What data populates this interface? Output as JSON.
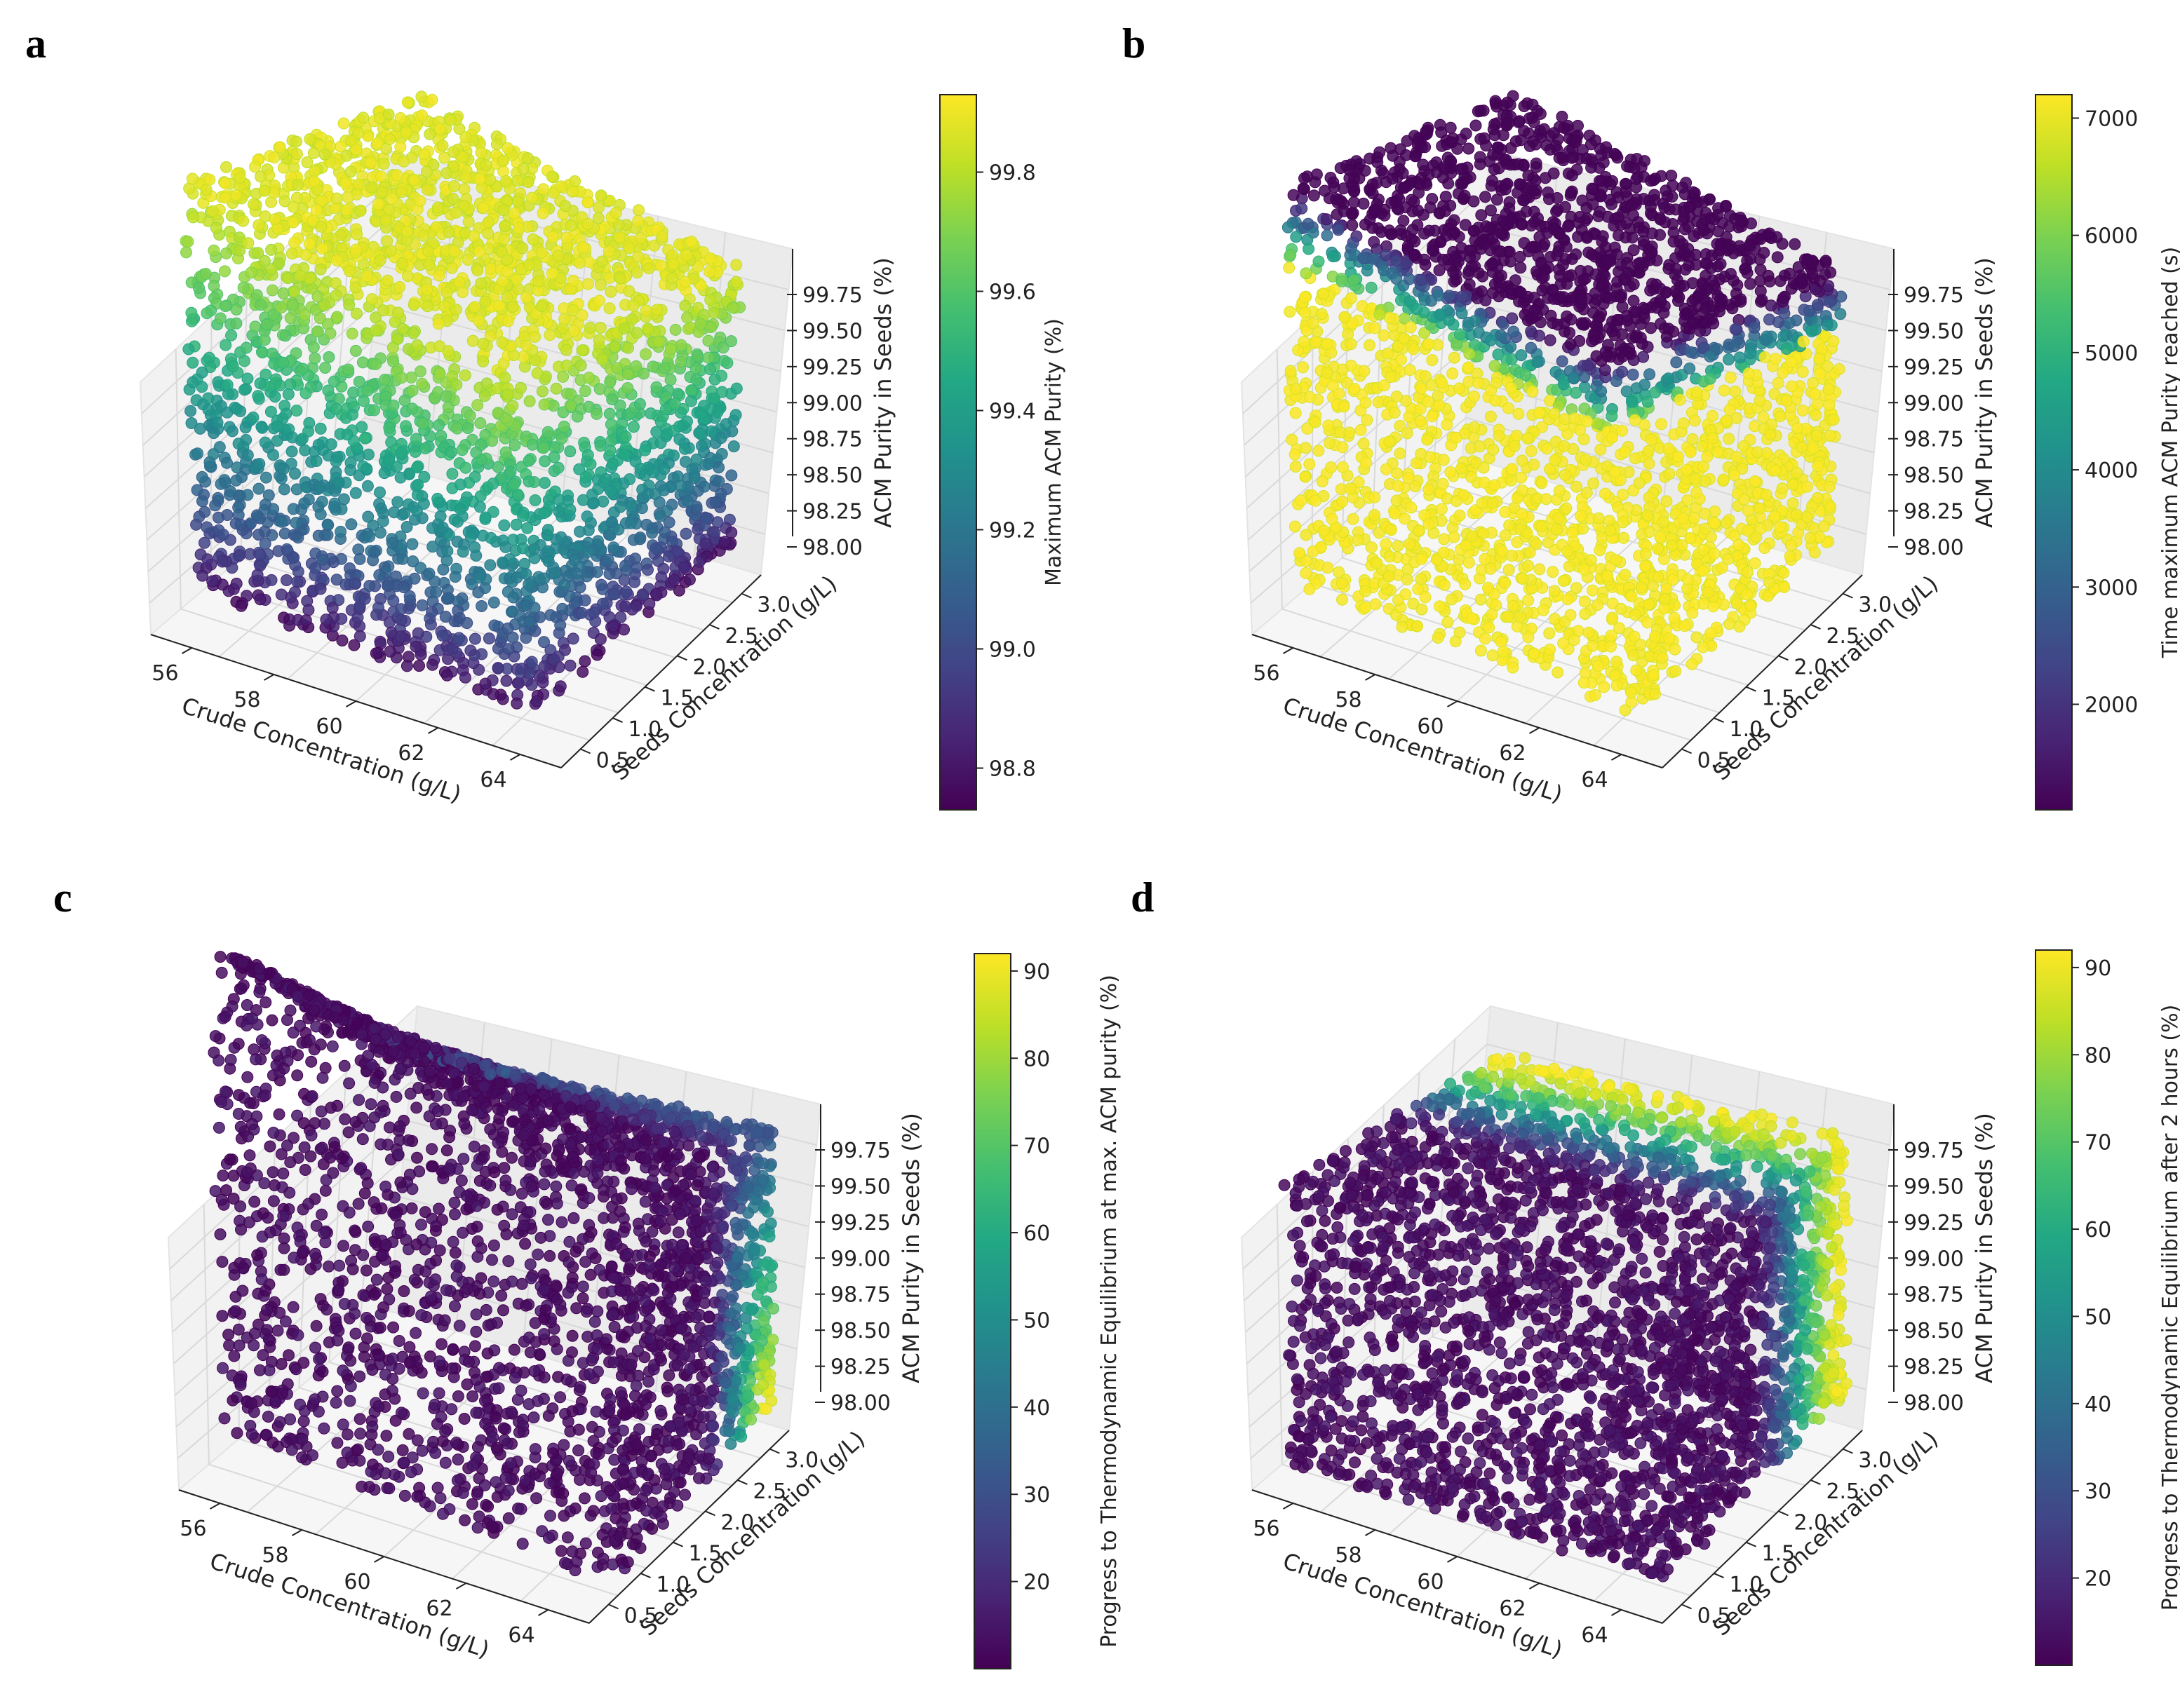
{
  "figure": {
    "panels": [
      "a",
      "b",
      "c",
      "d"
    ]
  },
  "colors": {
    "viridis": [
      "#440154",
      "#482475",
      "#414487",
      "#355f8d",
      "#2a788e",
      "#21918c",
      "#22a884",
      "#44bf70",
      "#7ad151",
      "#bddf26",
      "#fde725"
    ],
    "pane": "#f2f2f2",
    "grid": "#d9d9d9",
    "axis": "#222222"
  },
  "chart_data": [
    {
      "panel": "a",
      "type": "scatter",
      "subtype": "3d-scatter",
      "title": "",
      "xlabel": "Crude Concentration (g/L)",
      "ylabel": "Seeds Concentration (g/L)",
      "zlabel": "ACM Purity in Seeds (%)",
      "xlim": [
        55,
        65
      ],
      "ylim": [
        0.2,
        3.3
      ],
      "zlim": [
        97.8,
        99.9
      ],
      "xticks": [
        "56",
        "58",
        "60",
        "62",
        "64"
      ],
      "yticks": [
        "0.5",
        "1.0",
        "1.5",
        "2.0",
        "2.5",
        "3.0"
      ],
      "zticks": [
        "98.00",
        "98.25",
        "98.50",
        "98.75",
        "99.00",
        "99.25",
        "99.50",
        "99.75"
      ],
      "colorbar": {
        "label": "Maximum ACM Purity (%)",
        "range": [
          98.73,
          99.93
        ],
        "ticks": [
          "98.8",
          "99.0",
          "99.2",
          "99.4",
          "99.6",
          "99.8"
        ],
        "tick_values": [
          98.8,
          99.0,
          99.2,
          99.4,
          99.6,
          99.8
        ]
      },
      "color_mapping": "color increases with ACM Purity in Seeds (z); dark purple at bottom (~98.8), yellow on top (~99.9)"
    },
    {
      "panel": "b",
      "type": "scatter",
      "subtype": "3d-scatter",
      "title": "",
      "xlabel": "Crude Concentration (g/L)",
      "ylabel": "Seeds Concentration (g/L)",
      "zlabel": "ACM Purity in Seeds (%)",
      "xlim": [
        55,
        65
      ],
      "ylim": [
        0.2,
        3.3
      ],
      "zlim": [
        97.8,
        99.9
      ],
      "xticks": [
        "56",
        "58",
        "60",
        "62",
        "64"
      ],
      "yticks": [
        "0.5",
        "1.0",
        "1.5",
        "2.0",
        "2.5",
        "3.0"
      ],
      "zticks": [
        "98.00",
        "98.25",
        "98.50",
        "98.75",
        "99.00",
        "99.25",
        "99.50",
        "99.75"
      ],
      "colorbar": {
        "label": "Time maximum ACM Purity reached (s)",
        "range": [
          1100,
          7200
        ],
        "ticks": [
          "2000",
          "3000",
          "4000",
          "5000",
          "6000",
          "7000"
        ],
        "tick_values": [
          2000,
          3000,
          4000,
          5000,
          6000,
          7000
        ]
      },
      "color_mapping": "~7200 s (yellow) for most of the volume; top layer (highest purity) reaches maximum early (~1100-5000 s)"
    },
    {
      "panel": "c",
      "type": "scatter",
      "subtype": "3d-scatter",
      "title": "",
      "xlabel": "Crude Concentration (g/L)",
      "ylabel": "Seeds Concentration (g/L)",
      "zlabel": "ACM Purity in Seeds (%)",
      "xlim": [
        55,
        65
      ],
      "ylim": [
        0.2,
        3.3
      ],
      "zlim": [
        97.8,
        99.9
      ],
      "xticks": [
        "56",
        "58",
        "60",
        "62",
        "64"
      ],
      "yticks": [
        "0.5",
        "1.0",
        "1.5",
        "2.0",
        "2.5",
        "3.0"
      ],
      "zticks": [
        "98.00",
        "98.25",
        "98.50",
        "98.75",
        "99.00",
        "99.25",
        "99.50",
        "99.75"
      ],
      "colorbar": {
        "label": "Progress to Thermodynamic Equilibrium at max. ACM purity (%)",
        "range": [
          10,
          92
        ],
        "ticks": [
          "20",
          "30",
          "40",
          "50",
          "60",
          "70",
          "80",
          "90"
        ],
        "tick_values": [
          20,
          30,
          40,
          50,
          60,
          70,
          80,
          90
        ]
      },
      "color_mapping": "low (~10-20%) for most points; rises toward ~90% at high seeds concentration and lower purity"
    },
    {
      "panel": "d",
      "type": "scatter",
      "subtype": "3d-scatter",
      "title": "",
      "xlabel": "Crude Concentration (g/L)",
      "ylabel": "Seeds Concentration (g/L)",
      "zlabel": "ACM Purity in Seeds (%)",
      "xlim": [
        55,
        65
      ],
      "ylim": [
        0.2,
        3.3
      ],
      "zlim": [
        97.8,
        99.9
      ],
      "xticks": [
        "56",
        "58",
        "60",
        "62",
        "64"
      ],
      "yticks": [
        "0.5",
        "1.0",
        "1.5",
        "2.0",
        "2.5",
        "3.0"
      ],
      "zticks": [
        "98.00",
        "98.25",
        "98.50",
        "98.75",
        "99.00",
        "99.25",
        "99.50",
        "99.75"
      ],
      "colorbar": {
        "label": "Progress to Thermodynamic Equilibrium after 2 hours (%)",
        "range": [
          10,
          92
        ],
        "ticks": [
          "20",
          "30",
          "40",
          "50",
          "60",
          "70",
          "80",
          "90"
        ],
        "tick_values": [
          20,
          30,
          40,
          50,
          60,
          70,
          80,
          90
        ]
      },
      "color_mapping": "increases with seeds concentration; ~10% at low seeds, ~90% at high seeds"
    }
  ]
}
